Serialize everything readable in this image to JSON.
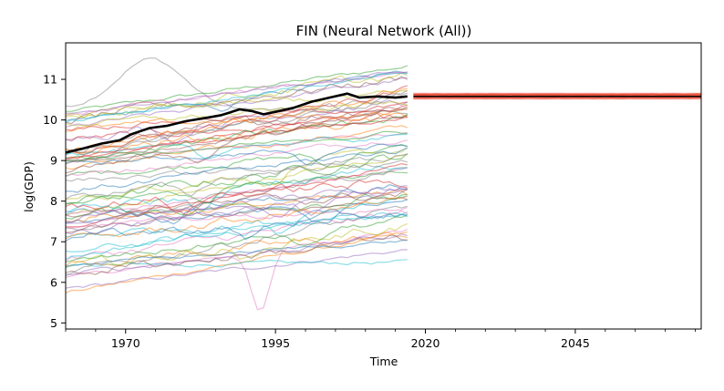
{
  "chart_data": {
    "type": "line",
    "title": "FIN (Neural Network (All))",
    "xlabel": "Time",
    "ylabel": "log(GDP)",
    "xlim": [
      1960,
      2066
    ],
    "ylim": [
      4.85,
      11.9
    ],
    "x_ticks": [
      1970,
      1995,
      2020,
      2045
    ],
    "y_ticks": [
      5,
      6,
      7,
      8,
      9,
      10,
      11
    ],
    "grid": false,
    "legend": "none",
    "historical_years": [
      1960,
      2017
    ],
    "highlight_series": {
      "color": "#000000",
      "points": [
        [
          1960,
          9.2
        ],
        [
          1963,
          9.3
        ],
        [
          1966,
          9.42
        ],
        [
          1969,
          9.5
        ],
        [
          1971,
          9.65
        ],
        [
          1974,
          9.8
        ],
        [
          1977,
          9.86
        ],
        [
          1980,
          9.97
        ],
        [
          1983,
          10.04
        ],
        [
          1986,
          10.12
        ],
        [
          1989,
          10.26
        ],
        [
          1991,
          10.22
        ],
        [
          1993,
          10.14
        ],
        [
          1995,
          10.2
        ],
        [
          1998,
          10.3
        ],
        [
          2001,
          10.45
        ],
        [
          2004,
          10.55
        ],
        [
          2007,
          10.65
        ],
        [
          2009,
          10.55
        ],
        [
          2012,
          10.58
        ],
        [
          2015,
          10.55
        ],
        [
          2017,
          10.58
        ]
      ]
    },
    "forecast": {
      "x_start": 2018,
      "x_end": 2066,
      "mean": 10.58,
      "band_low": 10.5,
      "band_high": 10.67,
      "mean_color": "#000000",
      "band_color": "#e8412c"
    },
    "background_series": {
      "count": 72,
      "alpha": 0.5,
      "examples": [
        {
          "color": "#2ca02c",
          "start": 10.2,
          "end": 11.32
        },
        {
          "color": "#7f7f7f",
          "start": 10.3,
          "end": 10.2,
          "peak": 11.5
        },
        {
          "color": "#e377c2",
          "start": 6.1,
          "end": 7.3,
          "dip": 5.25
        },
        {
          "color": "#ff7f0e",
          "start": 5.75,
          "end": 7.2
        },
        {
          "color": "#9467bd",
          "start": 5.85,
          "end": 6.8
        },
        {
          "color": "#17becf",
          "start": 6.4,
          "end": 6.5
        }
      ]
    }
  }
}
